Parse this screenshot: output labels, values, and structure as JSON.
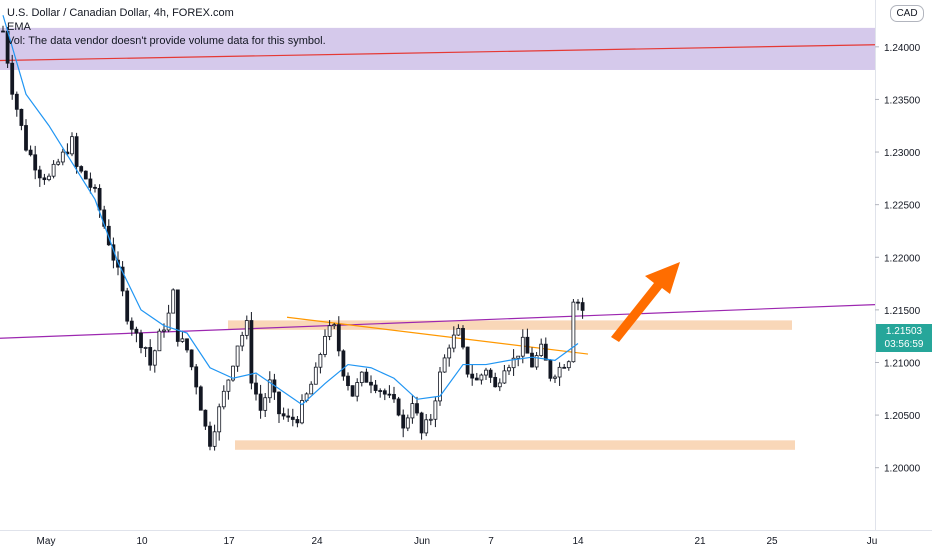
{
  "header": {
    "title": "U.S. Dollar / Canadian Dollar, 4h, FOREX.com",
    "indicator": "EMA",
    "volume_note": "Vol: The data vendor doesn't provide volume data for this symbol."
  },
  "currency_badge": "CAD",
  "last_price": {
    "value": "1.21503",
    "countdown": "03:56:59"
  },
  "colors": {
    "up": "#26a69a",
    "down": "#ef5350",
    "candle": "#131722",
    "ema": "#2196f3",
    "zone": "#f7c9a0",
    "top_zone": "#b39ddb",
    "red_line": "#e53935",
    "purple_line": "#9c27b0",
    "trend_line": "#ff9800",
    "arrow": "#ff6d00"
  },
  "chart_data": {
    "type": "candlestick",
    "y_axis": {
      "ticks": [
        1.24,
        1.235,
        1.23,
        1.225,
        1.22,
        1.215,
        1.21,
        1.205,
        1.2
      ],
      "tick_labels": [
        "1.24000",
        "1.23500",
        "1.23000",
        "1.22500",
        "1.22000",
        "1.21500",
        "1.21000",
        "1.20500",
        "1.20000"
      ],
      "range": [
        1.1975,
        1.2435
      ]
    },
    "x_axis": {
      "tick_labels": [
        "May",
        "10",
        "17",
        "24",
        "Jun",
        "7",
        "14",
        "21",
        "25",
        "Ju"
      ]
    },
    "price_path": [
      [
        0,
        1.2415
      ],
      [
        2,
        1.236
      ],
      [
        5,
        1.2305
      ],
      [
        8,
        1.228
      ],
      [
        10,
        1.2275
      ],
      [
        12,
        1.229
      ],
      [
        15,
        1.231
      ],
      [
        16,
        1.2285
      ],
      [
        18,
        1.2275
      ],
      [
        20,
        1.226
      ],
      [
        23,
        1.2215
      ],
      [
        25,
        1.2185
      ],
      [
        27,
        1.2145
      ],
      [
        29,
        1.2125
      ],
      [
        31,
        1.2115
      ],
      [
        32,
        1.2098
      ],
      [
        34,
        1.2125
      ],
      [
        36,
        1.2145
      ],
      [
        37,
        1.2165
      ],
      [
        38,
        1.2125
      ],
      [
        40,
        1.2112
      ],
      [
        42,
        1.208
      ],
      [
        44,
        1.2038
      ],
      [
        45,
        1.2025
      ],
      [
        47,
        1.2055
      ],
      [
        49,
        1.2085
      ],
      [
        51,
        1.2118
      ],
      [
        53,
        1.2135
      ],
      [
        54,
        1.2085
      ],
      [
        56,
        1.2055
      ],
      [
        58,
        1.208
      ],
      [
        60,
        1.2052
      ],
      [
        62,
        1.2045
      ],
      [
        64,
        1.2048
      ],
      [
        66,
        1.2068
      ],
      [
        68,
        1.209
      ],
      [
        70,
        1.2128
      ],
      [
        72,
        1.2132
      ],
      [
        74,
        1.2092
      ],
      [
        76,
        1.207
      ],
      [
        78,
        1.2086
      ],
      [
        80,
        1.2083
      ],
      [
        82,
        1.2075
      ],
      [
        84,
        1.2065
      ],
      [
        86,
        1.2055
      ],
      [
        87,
        1.2035
      ],
      [
        89,
        1.2065
      ],
      [
        91,
        1.2032
      ],
      [
        93,
        1.2048
      ],
      [
        95,
        1.2088
      ],
      [
        97,
        1.2118
      ],
      [
        99,
        1.2128
      ],
      [
        101,
        1.2092
      ],
      [
        103,
        1.2082
      ],
      [
        105,
        1.2095
      ],
      [
        107,
        1.2075
      ],
      [
        109,
        1.2098
      ],
      [
        111,
        1.2102
      ],
      [
        113,
        1.2118
      ],
      [
        115,
        1.2098
      ],
      [
        117,
        1.2112
      ],
      [
        119,
        1.2088
      ],
      [
        121,
        1.2095
      ],
      [
        123,
        1.2105
      ],
      [
        124,
        1.2162
      ],
      [
        125,
        1.2158
      ],
      [
        126,
        1.215
      ]
    ],
    "ema_path": [
      [
        0,
        1.243
      ],
      [
        5,
        1.2355
      ],
      [
        10,
        1.2325
      ],
      [
        15,
        1.229
      ],
      [
        20,
        1.2255
      ],
      [
        25,
        1.2195
      ],
      [
        30,
        1.215
      ],
      [
        35,
        1.2135
      ],
      [
        40,
        1.2128
      ],
      [
        45,
        1.2095
      ],
      [
        50,
        1.2085
      ],
      [
        55,
        1.209
      ],
      [
        60,
        1.2075
      ],
      [
        65,
        1.206
      ],
      [
        70,
        1.208
      ],
      [
        75,
        1.2098
      ],
      [
        80,
        1.2095
      ],
      [
        85,
        1.2085
      ],
      [
        90,
        1.2065
      ],
      [
        95,
        1.2068
      ],
      [
        100,
        1.2098
      ],
      [
        105,
        1.2098
      ],
      [
        110,
        1.2102
      ],
      [
        115,
        1.2105
      ],
      [
        120,
        1.2102
      ],
      [
        125,
        1.2118
      ]
    ],
    "horizontal_zones": [
      {
        "from": 1.2378,
        "to": 1.2418,
        "color_key": "top_zone"
      },
      {
        "from": 1.2131,
        "to": 1.214,
        "color_key": "zone"
      },
      {
        "from": 1.2017,
        "to": 1.2026,
        "color_key": "zone"
      }
    ],
    "lines": [
      {
        "name": "resistance-red",
        "from": [
          1.2387
        ],
        "to": [
          1.2402
        ],
        "color_key": "red_line"
      },
      {
        "name": "trend-purple",
        "from": [
          1.2123
        ],
        "to": [
          1.2155
        ],
        "color_key": "purple_line"
      },
      {
        "name": "descending-orange",
        "from": [
          1.2143
        ],
        "to": [
          1.2108
        ],
        "color_key": "trend_line"
      }
    ],
    "grid": false,
    "legend": "top-left"
  }
}
